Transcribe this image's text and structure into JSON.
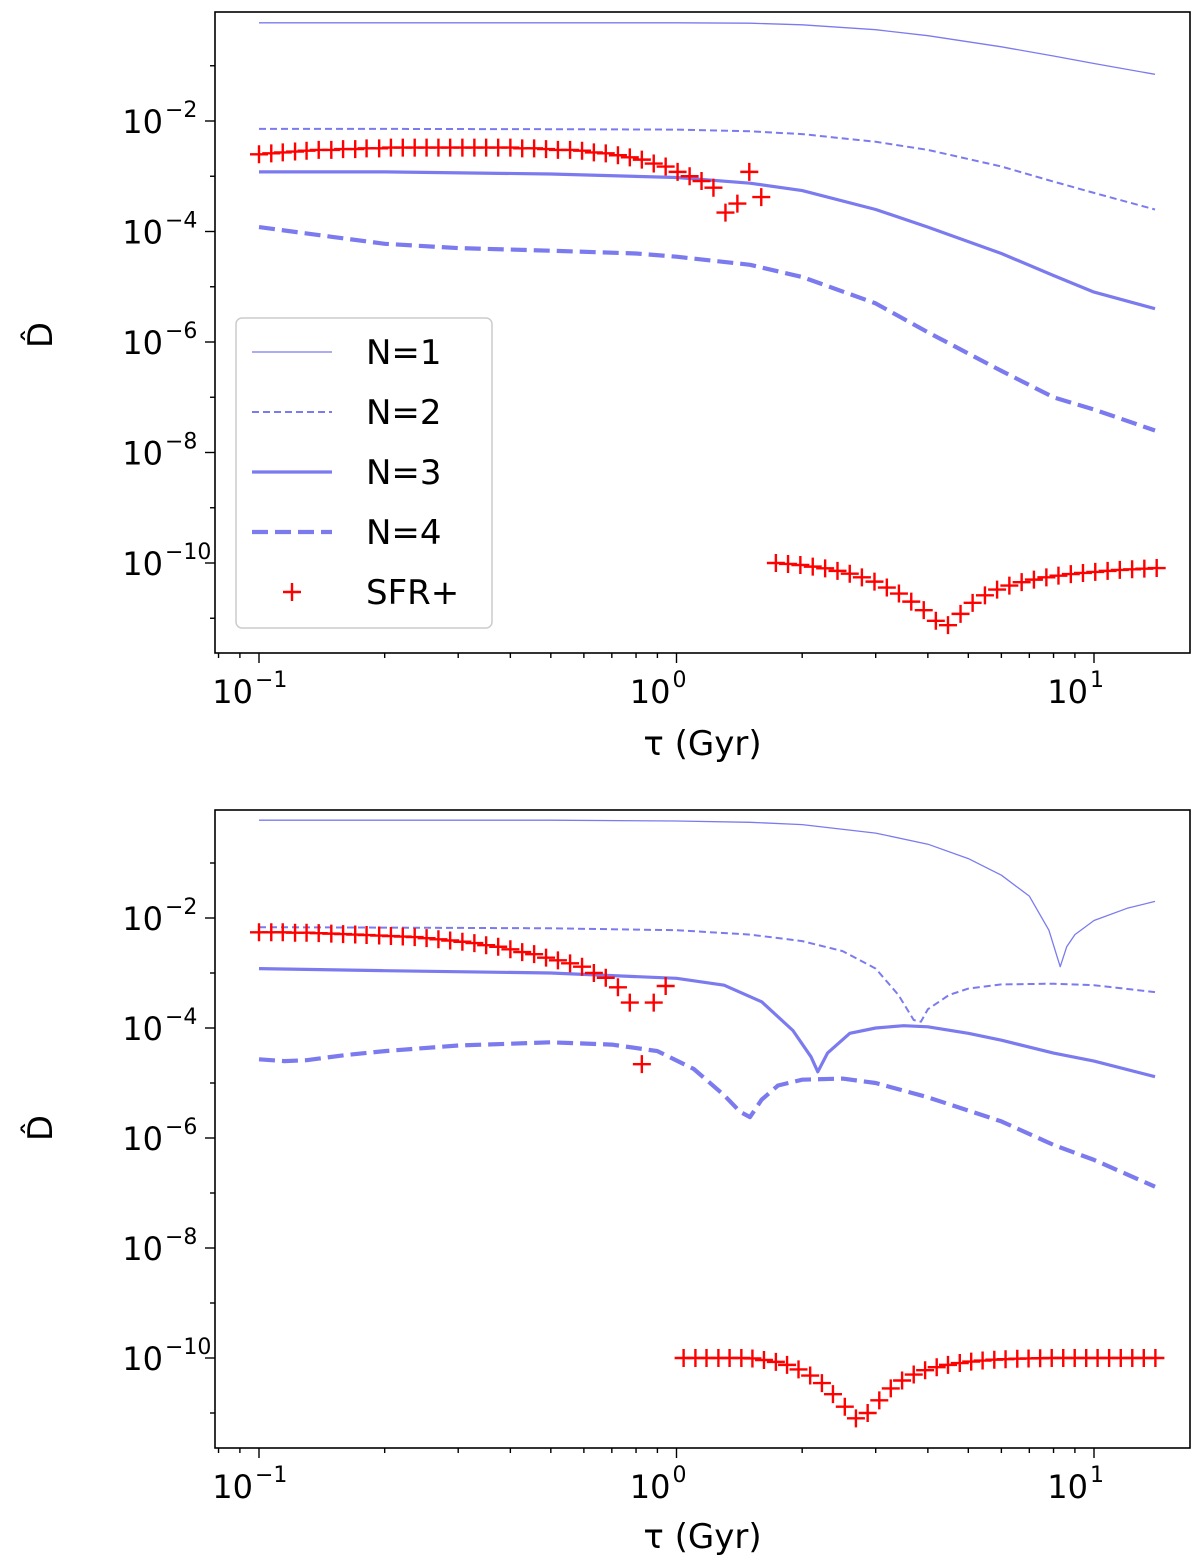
{
  "chart_data": [
    {
      "type": "line",
      "xlabel": "τ (Gyr)",
      "ylabel": "D̂",
      "xscale": "log",
      "yscale": "log",
      "xlim": [
        0.08,
        18
      ],
      "ylim": [
        1e-12,
        3.0
      ],
      "xticks": [
        {
          "base": "10",
          "exp": "−1",
          "value": 0.1
        },
        {
          "base": "10",
          "exp": "0",
          "value": 1
        },
        {
          "base": "10",
          "exp": "1",
          "value": 10
        }
      ],
      "yticks": [
        {
          "base": "10",
          "exp": "−2",
          "value": 0.01
        },
        {
          "base": "10",
          "exp": "−4",
          "value": 0.0001
        },
        {
          "base": "10",
          "exp": "−6",
          "value": 1e-06
        },
        {
          "base": "10",
          "exp": "−8",
          "value": 1e-08
        },
        {
          "base": "10",
          "exp": "−10",
          "value": 1e-10
        }
      ],
      "legend": {
        "placement": "lower-left",
        "entries": [
          "N=1",
          "N=2",
          "N=3",
          "N=4",
          "SFR+"
        ]
      },
      "series": [
        {
          "name": "N=1",
          "style": "thin-solid",
          "color": "#7b7bef",
          "x": [
            0.1,
            0.2,
            0.5,
            1.0,
            1.5,
            2.0,
            3.0,
            4.0,
            6.0,
            8.0,
            10.0,
            14.0
          ],
          "y": [
            0.6,
            0.6,
            0.6,
            0.6,
            0.59,
            0.55,
            0.45,
            0.35,
            0.22,
            0.15,
            0.11,
            0.07
          ]
        },
        {
          "name": "N=2",
          "style": "thin-dashed",
          "color": "#7b7bef",
          "x": [
            0.1,
            0.2,
            0.5,
            1.0,
            1.5,
            2.0,
            3.0,
            4.0,
            6.0,
            8.0,
            10.0,
            14.0
          ],
          "y": [
            0.0072,
            0.0072,
            0.0071,
            0.007,
            0.0065,
            0.0058,
            0.0042,
            0.003,
            0.0015,
            0.0008,
            0.0005,
            0.00025
          ]
        },
        {
          "name": "N=3",
          "style": "thick-solid",
          "color": "#7b7bef",
          "x": [
            0.1,
            0.2,
            0.5,
            1.0,
            1.5,
            2.0,
            3.0,
            4.0,
            6.0,
            8.0,
            10.0,
            14.0
          ],
          "y": [
            0.0012,
            0.0012,
            0.0011,
            0.00095,
            0.00075,
            0.00055,
            0.00025,
            0.00012,
            4e-05,
            1.6e-05,
            8e-06,
            4e-06
          ]
        },
        {
          "name": "N=4",
          "style": "thick-dashed",
          "color": "#7b7bef",
          "x": [
            0.1,
            0.12,
            0.15,
            0.2,
            0.3,
            0.5,
            0.8,
            1.0,
            1.5,
            2.0,
            3.0,
            4.0,
            6.0,
            8.0,
            10.0,
            14.0
          ],
          "y": [
            0.00012,
            0.0001,
            8e-05,
            6e-05,
            5e-05,
            4.5e-05,
            4e-05,
            3.5e-05,
            2.5e-05,
            1.5e-05,
            5e-06,
            1.5e-06,
            3e-07,
            1e-07,
            6e-08,
            2.5e-08
          ]
        },
        {
          "name": "SFR+",
          "style": "marker-plus",
          "color": "#ff0000",
          "x": [
            0.1,
            0.107,
            0.114,
            0.122,
            0.13,
            0.139,
            0.149,
            0.159,
            0.17,
            0.181,
            0.194,
            0.207,
            0.221,
            0.236,
            0.252,
            0.269,
            0.287,
            0.307,
            0.328,
            0.35,
            0.374,
            0.4,
            0.427,
            0.456,
            0.487,
            0.52,
            0.556,
            0.594,
            0.634,
            0.677,
            0.724,
            0.773,
            0.826,
            0.882,
            0.942,
            1.006,
            1.075,
            1.148,
            1.226,
            1.31,
            1.399,
            1.494,
            1.596,
            1.73,
            1.85,
            1.98,
            2.12,
            2.27,
            2.43,
            2.6,
            2.78,
            2.98,
            3.19,
            3.41,
            3.65,
            3.91,
            4.18,
            4.47,
            4.79,
            5.12,
            5.48,
            5.86,
            6.27,
            6.71,
            7.18,
            7.69,
            8.22,
            8.8,
            9.41,
            10.07,
            10.78,
            11.53,
            12.34,
            13.2,
            14.13
          ],
          "y": [
            0.0025,
            0.0026,
            0.0027,
            0.0028,
            0.0029,
            0.003,
            0.003,
            0.0031,
            0.0031,
            0.0032,
            0.0032,
            0.0033,
            0.0033,
            0.0033,
            0.0033,
            0.0033,
            0.0033,
            0.0033,
            0.0033,
            0.0033,
            0.0033,
            0.0033,
            0.0032,
            0.0032,
            0.0031,
            0.003,
            0.003,
            0.0029,
            0.0027,
            0.0026,
            0.0024,
            0.0022,
            0.002,
            0.0017,
            0.0015,
            0.0012,
            0.001,
            0.00082,
            0.00062,
            0.00022,
            0.00032,
            0.0012,
            0.00042,
            1e-10,
            9.6e-11,
            9.2e-11,
            8.6e-11,
            8e-11,
            7.2e-11,
            6.4e-11,
            5.5e-11,
            4.6e-11,
            3.6e-11,
            2.8e-11,
            2e-11,
            1.4e-11,
            9e-12,
            7.5e-12,
            1.2e-11,
            1.9e-11,
            2.6e-11,
            3.3e-11,
            3.9e-11,
            4.5e-11,
            5e-11,
            5.5e-11,
            5.9e-11,
            6.3e-11,
            6.6e-11,
            6.9e-11,
            7.2e-11,
            7.5e-11,
            7.7e-11,
            7.9e-11,
            8.1e-11
          ]
        }
      ]
    },
    {
      "type": "line",
      "xlabel": "τ (Gyr)",
      "ylabel": "D̂",
      "xscale": "log",
      "yscale": "log",
      "xlim": [
        0.08,
        18
      ],
      "ylim": [
        1e-12,
        3.0
      ],
      "xticks": [
        {
          "base": "10",
          "exp": "−1",
          "value": 0.1
        },
        {
          "base": "10",
          "exp": "0",
          "value": 1
        },
        {
          "base": "10",
          "exp": "1",
          "value": 10
        }
      ],
      "yticks": [
        {
          "base": "10",
          "exp": "−2",
          "value": 0.01
        },
        {
          "base": "10",
          "exp": "−4",
          "value": 0.0001
        },
        {
          "base": "10",
          "exp": "−6",
          "value": 1e-06
        },
        {
          "base": "10",
          "exp": "−8",
          "value": 1e-08
        },
        {
          "base": "10",
          "exp": "−10",
          "value": 1e-10
        }
      ],
      "series": [
        {
          "name": "N=1",
          "style": "thin-solid",
          "color": "#7b7bef",
          "x": [
            0.1,
            0.2,
            0.5,
            1.0,
            1.5,
            2.0,
            3.0,
            4.0,
            5.0,
            6.0,
            7.0,
            7.8,
            8.3,
            8.6,
            9.0,
            10.0,
            12.0,
            14.0
          ],
          "y": [
            0.6,
            0.6,
            0.6,
            0.58,
            0.55,
            0.5,
            0.35,
            0.22,
            0.12,
            0.06,
            0.025,
            0.006,
            0.0013,
            0.003,
            0.005,
            0.009,
            0.015,
            0.02
          ]
        },
        {
          "name": "N=2",
          "style": "thin-dashed",
          "color": "#7b7bef",
          "x": [
            0.1,
            0.2,
            0.5,
            1.0,
            1.5,
            2.0,
            2.5,
            3.0,
            3.4,
            3.7,
            3.85,
            4.0,
            4.5,
            5.0,
            6.0,
            8.0,
            10.0,
            14.0
          ],
          "y": [
            0.0068,
            0.0067,
            0.0065,
            0.006,
            0.005,
            0.0038,
            0.0025,
            0.0012,
            0.0004,
            0.00014,
            0.00013,
            0.00022,
            0.0004,
            0.00052,
            0.00062,
            0.00064,
            0.0006,
            0.00045
          ]
        },
        {
          "name": "N=3",
          "style": "thick-solid",
          "color": "#7b7bef",
          "x": [
            0.1,
            0.2,
            0.5,
            1.0,
            1.3,
            1.6,
            1.9,
            2.1,
            2.18,
            2.3,
            2.6,
            3.0,
            3.5,
            4.0,
            5.0,
            6.0,
            8.0,
            10.0,
            14.0
          ],
          "y": [
            0.0012,
            0.0011,
            0.001,
            0.0008,
            0.0006,
            0.0003,
            9e-05,
            3e-05,
            1.6e-05,
            3.5e-05,
            8e-05,
            0.0001,
            0.00011,
            0.000105,
            8e-05,
            6e-05,
            3.5e-05,
            2.5e-05,
            1.3e-05
          ]
        },
        {
          "name": "N=4",
          "style": "thick-dashed",
          "color": "#7b7bef",
          "x": [
            0.1,
            0.115,
            0.13,
            0.16,
            0.2,
            0.3,
            0.5,
            0.7,
            0.9,
            1.1,
            1.3,
            1.42,
            1.5,
            1.6,
            1.75,
            2.0,
            2.5,
            3.0,
            4.0,
            6.0,
            8.0,
            10.0,
            14.0
          ],
          "y": [
            2.7e-05,
            2.5e-05,
            2.6e-05,
            3.2e-05,
            3.8e-05,
            4.8e-05,
            5.5e-05,
            5e-05,
            3.8e-05,
            1.8e-05,
            6e-06,
            3e-06,
            2.4e-06,
            5e-06,
            9e-06,
            1.15e-05,
            1.2e-05,
            1e-05,
            5.5e-06,
            2e-06,
            7.5e-07,
            4e-07,
            1.3e-07
          ]
        },
        {
          "name": "SFR+",
          "style": "marker-plus",
          "color": "#ff0000",
          "x": [
            0.1,
            0.107,
            0.114,
            0.122,
            0.13,
            0.139,
            0.149,
            0.159,
            0.17,
            0.181,
            0.194,
            0.207,
            0.221,
            0.236,
            0.252,
            0.269,
            0.287,
            0.307,
            0.328,
            0.35,
            0.374,
            0.4,
            0.427,
            0.456,
            0.487,
            0.52,
            0.556,
            0.594,
            0.634,
            0.677,
            0.724,
            0.773,
            0.826,
            0.882,
            0.942,
            1.04,
            1.11,
            1.18,
            1.26,
            1.34,
            1.43,
            1.52,
            1.62,
            1.73,
            1.84,
            1.96,
            2.09,
            2.23,
            2.37,
            2.53,
            2.69,
            2.87,
            3.06,
            3.26,
            3.47,
            3.7,
            3.94,
            4.2,
            4.47,
            4.77,
            5.08,
            5.41,
            5.77,
            6.14,
            6.55,
            6.97,
            7.43,
            7.92,
            8.44,
            8.99,
            9.58,
            10.2,
            10.87,
            11.59,
            12.35,
            13.16,
            14.03
          ],
          "y": [
            0.0055,
            0.0055,
            0.0055,
            0.0054,
            0.0054,
            0.0053,
            0.0052,
            0.0051,
            0.005,
            0.0049,
            0.0048,
            0.0047,
            0.0046,
            0.0045,
            0.0043,
            0.0041,
            0.0039,
            0.0037,
            0.0035,
            0.0032,
            0.003,
            0.0027,
            0.0024,
            0.0022,
            0.0019,
            0.0017,
            0.0015,
            0.0013,
            0.001,
            0.00082,
            0.00055,
            0.00029,
            2.2e-05,
            0.00029,
            0.00058,
            1e-10,
            1e-10,
            1e-10,
            1e-10,
            1e-10,
            1e-10,
            9.8e-11,
            9.2e-11,
            8.5e-11,
            7.5e-11,
            6.2e-11,
            4.8e-11,
            3.5e-11,
            2.2e-11,
            1.3e-11,
            8e-12,
            1e-11,
            1.7e-11,
            2.8e-11,
            3.9e-11,
            5e-11,
            6e-11,
            6.8e-11,
            7.5e-11,
            8.1e-11,
            8.6e-11,
            9e-11,
            9.3e-11,
            9.5e-11,
            9.7e-11,
            9.8e-11,
            9.9e-11,
            1e-10,
            1e-10,
            1e-10,
            1e-10,
            1e-10,
            1e-10,
            1e-10,
            1e-10,
            1e-10,
            1e-10
          ]
        }
      ]
    }
  ]
}
